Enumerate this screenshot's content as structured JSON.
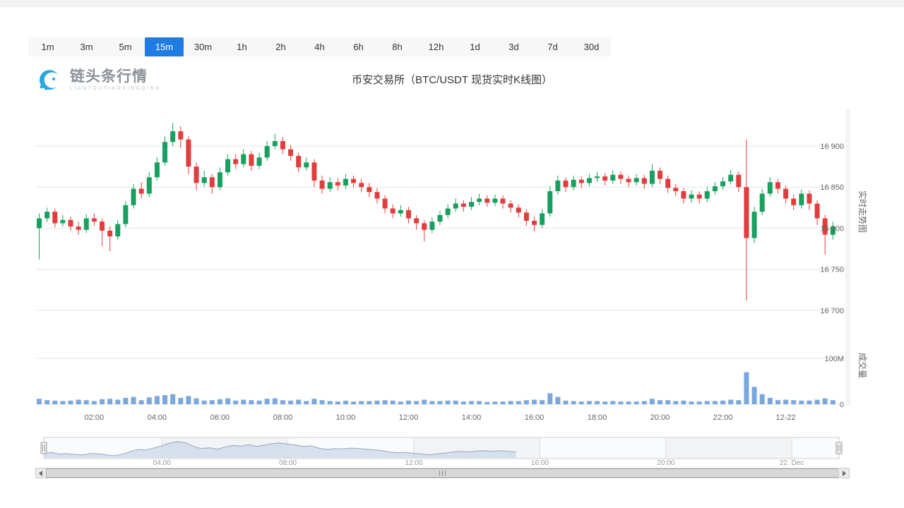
{
  "toolbar": {
    "timeframes": [
      "1m",
      "3m",
      "5m",
      "15m",
      "30m",
      "1h",
      "2h",
      "4h",
      "6h",
      "8h",
      "12h",
      "1d",
      "3d",
      "7d",
      "30d"
    ],
    "selected": "15m"
  },
  "brand": {
    "name": "链头条行情",
    "tagline": "LIANTOUTIAOXINGQING"
  },
  "title": "币安交易所（BTC/USDT 现货实时K线图）",
  "panes": {
    "price_title": "实时走势图",
    "volume_title": "成交量"
  },
  "axes": {
    "price_ticks": [
      {
        "value": 16900,
        "label": "16 900"
      },
      {
        "value": 16850,
        "label": "16 850"
      },
      {
        "value": 16800,
        "label": "16 800"
      },
      {
        "value": 16750,
        "label": "16 750"
      },
      {
        "value": 16700,
        "label": "16 700"
      }
    ],
    "volume_ticks": [
      {
        "value": 100,
        "label": "100M"
      },
      {
        "value": 0,
        "label": "0"
      }
    ],
    "time_ticks": [
      {
        "index": 7,
        "label": "02:00"
      },
      {
        "index": 15,
        "label": "04:00"
      },
      {
        "index": 23,
        "label": "06:00"
      },
      {
        "index": 31,
        "label": "08:00"
      },
      {
        "index": 39,
        "label": "10:00"
      },
      {
        "index": 47,
        "label": "12:00"
      },
      {
        "index": 55,
        "label": "14:00"
      },
      {
        "index": 63,
        "label": "16:00"
      },
      {
        "index": 71,
        "label": "18:00"
      },
      {
        "index": 79,
        "label": "20:00"
      },
      {
        "index": 87,
        "label": "22:00"
      },
      {
        "index": 95,
        "label": "12-22"
      }
    ],
    "navigator_ticks": [
      {
        "index": 15,
        "label": "04:00"
      },
      {
        "index": 31,
        "label": "08:00"
      },
      {
        "index": 47,
        "label": "12:00"
      },
      {
        "index": 63,
        "label": "16:00"
      },
      {
        "index": 79,
        "label": "20:00"
      },
      {
        "index": 95,
        "label": "22. Dec"
      }
    ]
  },
  "colors": {
    "up": "#17a05e",
    "down": "#e23d3d",
    "volume": "#7ba7df",
    "tab_selected_bg": "#1e7ce2",
    "tab_selected_text": "#ffffff",
    "grid": "#e6e6e6",
    "axis_text": "#666666",
    "title_text": "#333333",
    "navigator_fill": "#ccd9e8",
    "navigator_line": "#90a6c2"
  },
  "chart_data": {
    "type": "candlestick",
    "symbol": "BTC/USDT",
    "exchange": "币安交易所",
    "interval": "15m",
    "title": "币安交易所（BTC/USDT 现货实时K线图）",
    "ylim": [
      16660,
      16945
    ],
    "volume_ylim_millions": [
      0,
      100
    ],
    "first_candle_time": "00:15",
    "columns": [
      "open",
      "high",
      "low",
      "close",
      "volume_millions"
    ],
    "candles": [
      [
        16800,
        16818,
        16762,
        16812,
        12
      ],
      [
        16812,
        16825,
        16808,
        16820,
        9
      ],
      [
        16820,
        16824,
        16801,
        16806,
        8
      ],
      [
        16806,
        16816,
        16802,
        16810,
        7
      ],
      [
        16810,
        16814,
        16797,
        16802,
        8
      ],
      [
        16802,
        16808,
        16792,
        16798,
        10
      ],
      [
        16798,
        16817,
        16794,
        16812,
        9
      ],
      [
        16812,
        16818,
        16803,
        16808,
        7
      ],
      [
        16808,
        16812,
        16778,
        16797,
        11
      ],
      [
        16797,
        16802,
        16772,
        16790,
        12
      ],
      [
        16790,
        16810,
        16786,
        16805,
        10
      ],
      [
        16805,
        16833,
        16801,
        16828,
        14
      ],
      [
        16828,
        16854,
        16824,
        16848,
        16
      ],
      [
        16848,
        16856,
        16836,
        16842,
        9
      ],
      [
        16842,
        16868,
        16838,
        16862,
        15
      ],
      [
        16862,
        16886,
        16858,
        16880,
        18
      ],
      [
        16880,
        16912,
        16876,
        16905,
        20
      ],
      [
        16905,
        16928,
        16900,
        16918,
        22
      ],
      [
        16918,
        16924,
        16898,
        16908,
        14
      ],
      [
        16908,
        16912,
        16866,
        16875,
        18
      ],
      [
        16875,
        16880,
        16846,
        16855,
        13
      ],
      [
        16855,
        16870,
        16850,
        16862,
        8
      ],
      [
        16862,
        16866,
        16842,
        16850,
        9
      ],
      [
        16850,
        16874,
        16846,
        16868,
        11
      ],
      [
        16868,
        16890,
        16864,
        16884,
        13
      ],
      [
        16884,
        16890,
        16872,
        16878,
        8
      ],
      [
        16878,
        16896,
        16874,
        16890,
        10
      ],
      [
        16890,
        16894,
        16870,
        16876,
        9
      ],
      [
        16876,
        16892,
        16872,
        16886,
        8
      ],
      [
        16886,
        16906,
        16882,
        16900,
        12
      ],
      [
        16900,
        16915,
        16896,
        16906,
        13
      ],
      [
        16906,
        16911,
        16890,
        16896,
        9
      ],
      [
        16896,
        16901,
        16882,
        16888,
        8
      ],
      [
        16888,
        16892,
        16868,
        16874,
        10
      ],
      [
        16874,
        16886,
        16870,
        16880,
        7
      ],
      [
        16880,
        16884,
        16850,
        16858,
        12
      ],
      [
        16858,
        16864,
        16842,
        16848,
        9
      ],
      [
        16848,
        16862,
        16844,
        16856,
        7
      ],
      [
        16856,
        16861,
        16846,
        16852,
        6
      ],
      [
        16852,
        16866,
        16848,
        16860,
        8
      ],
      [
        16860,
        16864,
        16849,
        16855,
        6
      ],
      [
        16855,
        16860,
        16844,
        16850,
        7
      ],
      [
        16850,
        16855,
        16838,
        16844,
        7
      ],
      [
        16844,
        16849,
        16830,
        16836,
        8
      ],
      [
        16836,
        16840,
        16818,
        16824,
        9
      ],
      [
        16824,
        16829,
        16812,
        16818,
        8
      ],
      [
        16818,
        16828,
        16814,
        16822,
        6
      ],
      [
        16822,
        16826,
        16806,
        16812,
        8
      ],
      [
        16812,
        16816,
        16798,
        16806,
        7
      ],
      [
        16806,
        16810,
        16784,
        16798,
        10
      ],
      [
        16798,
        16813,
        16794,
        16808,
        7
      ],
      [
        16808,
        16821,
        16804,
        16816,
        7
      ],
      [
        16816,
        16829,
        16812,
        16824,
        8
      ],
      [
        16824,
        16836,
        16820,
        16830,
        8
      ],
      [
        16830,
        16834,
        16820,
        16826,
        6
      ],
      [
        16826,
        16838,
        16822,
        16832,
        7
      ],
      [
        16832,
        16842,
        16828,
        16836,
        7
      ],
      [
        16836,
        16840,
        16826,
        16831,
        5
      ],
      [
        16831,
        16841,
        16827,
        16836,
        6
      ],
      [
        16836,
        16840,
        16824,
        16830,
        6
      ],
      [
        16830,
        16834,
        16819,
        16825,
        7
      ],
      [
        16825,
        16829,
        16813,
        16819,
        7
      ],
      [
        16819,
        16823,
        16803,
        16809,
        9
      ],
      [
        16809,
        16814,
        16796,
        16804,
        10
      ],
      [
        16804,
        16823,
        16800,
        16818,
        9
      ],
      [
        16818,
        16851,
        16814,
        16845,
        24
      ],
      [
        16845,
        16864,
        16841,
        16858,
        16
      ],
      [
        16858,
        16862,
        16844,
        16850,
        8
      ],
      [
        16850,
        16864,
        16846,
        16859,
        7
      ],
      [
        16859,
        16863,
        16849,
        16855,
        6
      ],
      [
        16855,
        16866,
        16851,
        16861,
        7
      ],
      [
        16861,
        16869,
        16856,
        16863,
        7
      ],
      [
        16863,
        16867,
        16852,
        16858,
        6
      ],
      [
        16858,
        16871,
        16854,
        16865,
        7
      ],
      [
        16865,
        16869,
        16854,
        16860,
        6
      ],
      [
        16860,
        16864,
        16850,
        16856,
        6
      ],
      [
        16856,
        16866,
        16852,
        16861,
        6
      ],
      [
        16861,
        16865,
        16848,
        16854,
        7
      ],
      [
        16854,
        16878,
        16850,
        16870,
        12
      ],
      [
        16870,
        16874,
        16854,
        16860,
        9
      ],
      [
        16860,
        16864,
        16843,
        16849,
        9
      ],
      [
        16849,
        16854,
        16839,
        16845,
        7
      ],
      [
        16845,
        16849,
        16830,
        16836,
        8
      ],
      [
        16836,
        16846,
        16831,
        16841,
        6
      ],
      [
        16841,
        16845,
        16830,
        16836,
        6
      ],
      [
        16836,
        16850,
        16832,
        16845,
        7
      ],
      [
        16845,
        16856,
        16841,
        16851,
        7
      ],
      [
        16851,
        16862,
        16847,
        16857,
        8
      ],
      [
        16857,
        16871,
        16853,
        16865,
        10
      ],
      [
        16865,
        16869,
        16844,
        16850,
        9
      ],
      [
        16850,
        16908,
        16712,
        16788,
        70
      ],
      [
        16788,
        16826,
        16782,
        16820,
        38
      ],
      [
        16820,
        16848,
        16816,
        16842,
        22
      ],
      [
        16842,
        16862,
        16838,
        16856,
        14
      ],
      [
        16856,
        16860,
        16842,
        16848,
        9
      ],
      [
        16848,
        16852,
        16830,
        16836,
        10
      ],
      [
        16836,
        16841,
        16822,
        16828,
        9
      ],
      [
        16828,
        16847,
        16824,
        16842,
        8
      ],
      [
        16842,
        16846,
        16822,
        16830,
        8
      ],
      [
        16830,
        16834,
        16804,
        16812,
        10
      ],
      [
        16812,
        16816,
        16768,
        16792,
        13
      ],
      [
        16792,
        16808,
        16786,
        16802,
        9
      ]
    ]
  }
}
